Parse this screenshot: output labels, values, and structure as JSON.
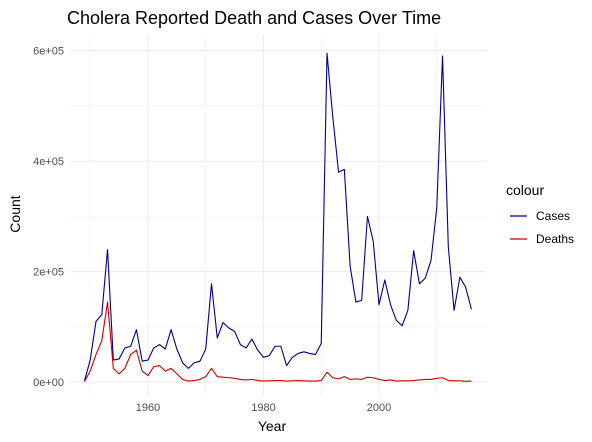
{
  "chart_data": {
    "type": "line",
    "title": "Cholera Reported Death and Cases Over Time",
    "xlabel": "Year",
    "ylabel": "Count",
    "xlim": [
      1946.5,
      2018.7
    ],
    "ylim": [
      -25000,
      630000
    ],
    "x_ticks": [
      1960,
      1980,
      2000
    ],
    "y_ticks": [
      0,
      200000,
      400000,
      600000
    ],
    "y_tick_labels": [
      "0e+00",
      "2e+05",
      "4e+05",
      "6e+05"
    ],
    "legend": {
      "title": "colour",
      "position": "right"
    },
    "grid": true,
    "series": [
      {
        "name": "Cases",
        "color": "#00008b",
        "points": [
          [
            1949,
            2000
          ],
          [
            1950,
            40000
          ],
          [
            1951,
            110000
          ],
          [
            1952,
            122000
          ],
          [
            1953,
            240000
          ],
          [
            1954,
            40000
          ],
          [
            1955,
            42000
          ],
          [
            1956,
            62000
          ],
          [
            1957,
            65000
          ],
          [
            1958,
            95000
          ],
          [
            1959,
            38000
          ],
          [
            1960,
            40000
          ],
          [
            1961,
            62000
          ],
          [
            1962,
            68000
          ],
          [
            1963,
            60000
          ],
          [
            1964,
            95000
          ],
          [
            1965,
            60000
          ],
          [
            1966,
            35000
          ],
          [
            1967,
            25000
          ],
          [
            1968,
            35000
          ],
          [
            1969,
            38000
          ],
          [
            1970,
            60000
          ],
          [
            1971,
            178000
          ],
          [
            1972,
            80000
          ],
          [
            1973,
            108000
          ],
          [
            1974,
            98000
          ],
          [
            1975,
            92000
          ],
          [
            1976,
            68000
          ],
          [
            1977,
            62000
          ],
          [
            1978,
            78000
          ],
          [
            1979,
            58000
          ],
          [
            1980,
            45000
          ],
          [
            1981,
            48000
          ],
          [
            1982,
            65000
          ],
          [
            1983,
            65000
          ],
          [
            1984,
            30000
          ],
          [
            1985,
            45000
          ],
          [
            1986,
            52000
          ],
          [
            1987,
            55000
          ],
          [
            1988,
            52000
          ],
          [
            1989,
            50000
          ],
          [
            1990,
            70000
          ],
          [
            1991,
            595000
          ],
          [
            1992,
            480000
          ],
          [
            1993,
            380000
          ],
          [
            1994,
            385000
          ],
          [
            1995,
            210000
          ],
          [
            1996,
            145000
          ],
          [
            1997,
            148000
          ],
          [
            1998,
            300000
          ],
          [
            1999,
            255000
          ],
          [
            2000,
            140000
          ],
          [
            2001,
            185000
          ],
          [
            2002,
            140000
          ],
          [
            2003,
            112000
          ],
          [
            2004,
            102000
          ],
          [
            2005,
            130000
          ],
          [
            2006,
            238000
          ],
          [
            2007,
            178000
          ],
          [
            2008,
            188000
          ],
          [
            2009,
            220000
          ],
          [
            2010,
            315000
          ],
          [
            2011,
            590000
          ],
          [
            2012,
            245000
          ],
          [
            2013,
            130000
          ],
          [
            2014,
            190000
          ],
          [
            2015,
            172000
          ],
          [
            2016,
            132000
          ]
        ]
      },
      {
        "name": "Deaths",
        "color": "#cd0000",
        "points": [
          [
            1949,
            1000
          ],
          [
            1950,
            20000
          ],
          [
            1951,
            50000
          ],
          [
            1952,
            75000
          ],
          [
            1953,
            145000
          ],
          [
            1954,
            25000
          ],
          [
            1955,
            15000
          ],
          [
            1956,
            25000
          ],
          [
            1957,
            50000
          ],
          [
            1958,
            58000
          ],
          [
            1959,
            20000
          ],
          [
            1960,
            12000
          ],
          [
            1961,
            28000
          ],
          [
            1962,
            30000
          ],
          [
            1963,
            20000
          ],
          [
            1964,
            25000
          ],
          [
            1965,
            15000
          ],
          [
            1966,
            5000
          ],
          [
            1967,
            2000
          ],
          [
            1968,
            3000
          ],
          [
            1969,
            5000
          ],
          [
            1970,
            10000
          ],
          [
            1971,
            25000
          ],
          [
            1972,
            10000
          ],
          [
            1973,
            9000
          ],
          [
            1974,
            8000
          ],
          [
            1975,
            7000
          ],
          [
            1976,
            5000
          ],
          [
            1977,
            4000
          ],
          [
            1978,
            5000
          ],
          [
            1979,
            3000
          ],
          [
            1980,
            2000
          ],
          [
            1981,
            2500
          ],
          [
            1982,
            3000
          ],
          [
            1983,
            3000
          ],
          [
            1984,
            2000
          ],
          [
            1985,
            2500
          ],
          [
            1986,
            3000
          ],
          [
            1987,
            2500
          ],
          [
            1988,
            2000
          ],
          [
            1989,
            2000
          ],
          [
            1990,
            3000
          ],
          [
            1991,
            18000
          ],
          [
            1992,
            8000
          ],
          [
            1993,
            6000
          ],
          [
            1994,
            10000
          ],
          [
            1995,
            5000
          ],
          [
            1996,
            6000
          ],
          [
            1997,
            5000
          ],
          [
            1998,
            9000
          ],
          [
            1999,
            8000
          ],
          [
            2000,
            5000
          ],
          [
            2001,
            3000
          ],
          [
            2002,
            4000
          ],
          [
            2003,
            2000
          ],
          [
            2004,
            2500
          ],
          [
            2005,
            2500
          ],
          [
            2006,
            3000
          ],
          [
            2007,
            4000
          ],
          [
            2008,
            5000
          ],
          [
            2009,
            5000
          ],
          [
            2010,
            7000
          ],
          [
            2011,
            8000
          ],
          [
            2012,
            3000
          ],
          [
            2013,
            2500
          ],
          [
            2014,
            2500
          ],
          [
            2015,
            1500
          ],
          [
            2016,
            2000
          ]
        ]
      }
    ]
  }
}
